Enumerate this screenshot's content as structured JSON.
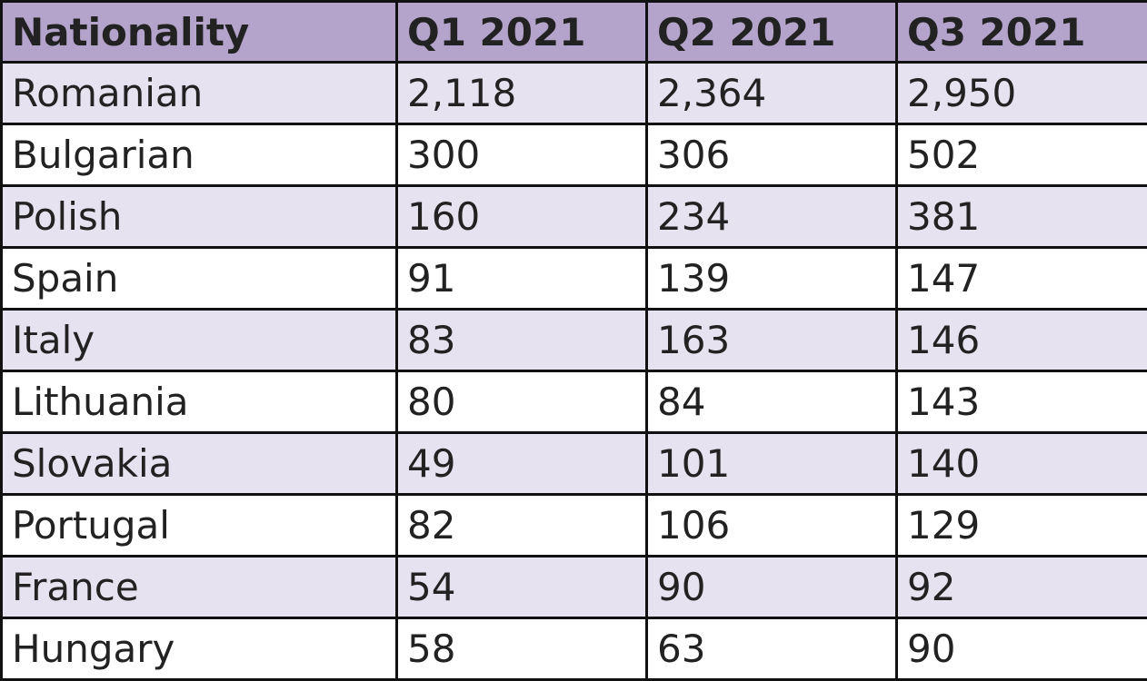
{
  "table": {
    "header": [
      "Nationality",
      "Q1 2021",
      "Q2 2021",
      "Q3 2021"
    ],
    "rows": [
      [
        "Romanian",
        "2,118",
        "2,364",
        "2,950"
      ],
      [
        "Bulgarian",
        "300",
        "306",
        "502"
      ],
      [
        "Polish",
        "160",
        "234",
        "381"
      ],
      [
        "Spain",
        "91",
        "139",
        "147"
      ],
      [
        "Italy",
        "83",
        "163",
        "146"
      ],
      [
        "Lithuania",
        "80",
        "84",
        "143"
      ],
      [
        "Slovakia",
        "49",
        "101",
        "140"
      ],
      [
        "Portugal",
        "82",
        "106",
        "129"
      ],
      [
        "France",
        "54",
        "90",
        "92"
      ],
      [
        "Hungary",
        "58",
        "63",
        "90"
      ]
    ]
  }
}
